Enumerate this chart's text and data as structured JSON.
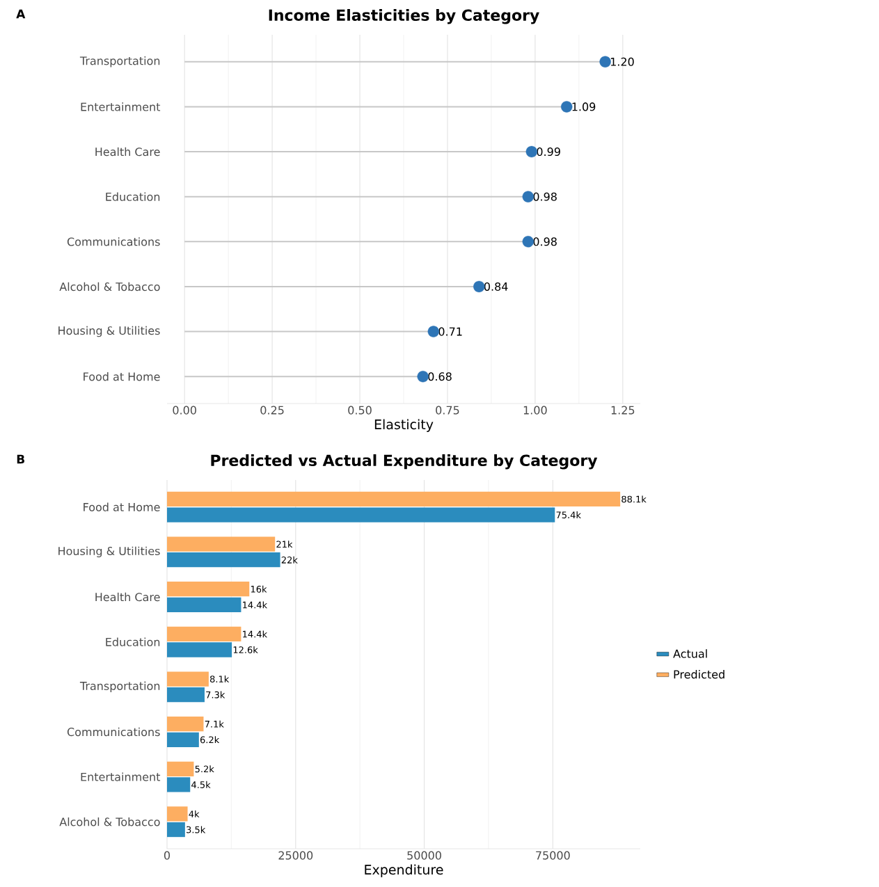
{
  "chart_data": [
    {
      "type": "lollipop",
      "orientation": "horizontal",
      "title": "Income Elasticities by Category",
      "xlabel": "Elasticity",
      "annotations": [
        "A"
      ],
      "categories": [
        "Transportation",
        "Entertainment",
        "Health Care",
        "Education",
        "Communications",
        "Alcohol & Tobacco",
        "Housing & Utilities",
        "Food at Home"
      ],
      "values": [
        1.2,
        1.09,
        0.99,
        0.98,
        0.98,
        0.84,
        0.71,
        0.68
      ],
      "value_labels": [
        "1.20",
        "1.09",
        "0.99",
        "0.98",
        "0.98",
        "0.84",
        "0.71",
        "0.68"
      ],
      "color": "#2e75b6",
      "marker": "circle",
      "xlim": [
        -0.05,
        1.3
      ],
      "xticks": [
        {
          "value": 0,
          "label": "0.00"
        },
        {
          "value": 0.25,
          "label": "0.25"
        },
        {
          "value": 0.5,
          "label": "0.50"
        },
        {
          "value": 0.75,
          "label": "0.75"
        },
        {
          "value": 1,
          "label": "1.00"
        },
        {
          "value": 1.25,
          "label": "1.25"
        }
      ],
      "grid": "x",
      "legend": false
    },
    {
      "type": "bar",
      "orientation": "horizontal",
      "title": "Predicted vs Actual Expenditure by Category",
      "xlabel": "Expenditure",
      "annotations": [
        "B"
      ],
      "categories": [
        "Food at Home",
        "Housing & Utilities",
        "Health Care",
        "Education",
        "Transportation",
        "Communications",
        "Entertainment",
        "Alcohol & Tobacco"
      ],
      "series": [
        {
          "name": "Actual",
          "color": "#2b8cbe",
          "values": [
            75400,
            22000,
            14400,
            12600,
            7300,
            6200,
            4500,
            3500
          ],
          "value_labels": [
            "75.4k",
            "22k",
            "14.4k",
            "12.6k",
            "7.3k",
            "6.2k",
            "4.5k",
            "3.5k"
          ]
        },
        {
          "name": "Predicted",
          "color": "#fdae61",
          "values": [
            88100,
            21000,
            16000,
            14400,
            8100,
            7100,
            5200,
            4000
          ],
          "value_labels": [
            "88.1k",
            "21k",
            "16k",
            "14.4k",
            "8.1k",
            "7.1k",
            "5.2k",
            "4k"
          ]
        }
      ],
      "xlim": [
        0,
        92000
      ],
      "xticks": [
        0,
        25000,
        50000,
        75000
      ],
      "grid": "x",
      "legend": "right"
    }
  ]
}
